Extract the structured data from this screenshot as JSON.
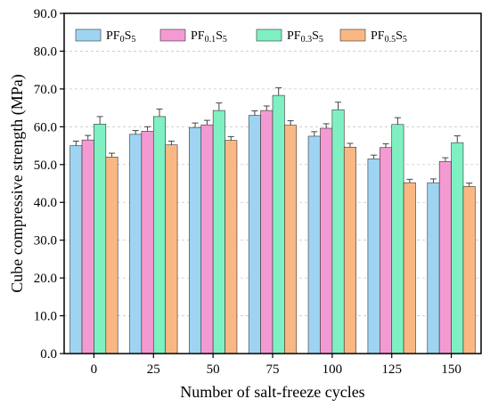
{
  "chart_data": {
    "type": "bar",
    "xlabel": "Number of salt-freeze cycles",
    "ylabel": "Cube compressive strength (MPa)",
    "ylim": [
      0,
      90
    ],
    "yticks": [
      "0.0",
      "10.0",
      "20.0",
      "30.0",
      "40.0",
      "50.0",
      "60.0",
      "70.0",
      "80.0",
      "90.0"
    ],
    "categories": [
      "0",
      "25",
      "50",
      "75",
      "100",
      "125",
      "150"
    ],
    "legend_position": "top",
    "series": [
      {
        "name": "PF0S5",
        "label_main": "PF",
        "label_sub1": "0",
        "label_mid": "S",
        "label_sub2": "5",
        "color": "#9ed4f2",
        "values": [
          55.0,
          58.0,
          59.8,
          63.0,
          57.5,
          51.5,
          45.2
        ],
        "errors": [
          1.2,
          1.0,
          1.2,
          1.2,
          1.2,
          1.0,
          1.0
        ]
      },
      {
        "name": "PF0.1S5",
        "label_main": "PF",
        "label_sub1": "0.1",
        "label_mid": "S",
        "label_sub2": "5",
        "color": "#f49ad2",
        "values": [
          56.5,
          58.8,
          60.5,
          64.3,
          59.6,
          54.5,
          50.8
        ],
        "errors": [
          1.2,
          1.2,
          1.2,
          1.2,
          1.2,
          1.0,
          1.0
        ]
      },
      {
        "name": "PF0.3S5",
        "label_main": "PF",
        "label_sub1": "0.3",
        "label_mid": "S",
        "label_sub2": "5",
        "color": "#7ff0c2",
        "values": [
          60.7,
          62.7,
          64.3,
          68.3,
          64.5,
          60.6,
          55.8
        ],
        "errors": [
          2.0,
          2.0,
          2.0,
          2.0,
          2.0,
          1.8,
          1.8
        ]
      },
      {
        "name": "PF0.5S5",
        "label_main": "PF",
        "label_sub1": "0.5",
        "label_mid": "S",
        "label_sub2": "5",
        "color": "#f9b883",
        "values": [
          52.0,
          55.2,
          56.4,
          60.4,
          54.6,
          45.2,
          44.2
        ],
        "errors": [
          1.0,
          1.0,
          1.0,
          1.2,
          1.0,
          0.9,
          0.9
        ]
      }
    ]
  }
}
